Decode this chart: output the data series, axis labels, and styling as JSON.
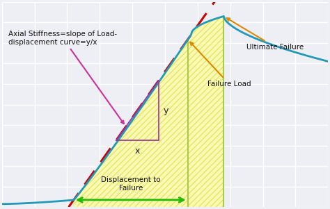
{
  "bg_color": "#eeeef5",
  "grid_color": "#ffffff",
  "curve_color": "#2299bb",
  "dashed_line_color": "#cc0000",
  "hatch_facecolor": "#ffff99",
  "hatch_edgecolor": "#dddd44",
  "vline_color": "#aacc44",
  "arrow_color_orange": "#dd8800",
  "arrow_color_green": "#22bb00",
  "arrow_color_pink": "#cc3399",
  "text_color": "#111111",
  "annotation_axial": "Axial Stiffness=slope of Load-\ndisplacement curve=y/x",
  "annotation_ultimate": "Ultimate Failure",
  "annotation_failure_load": "Failure Load",
  "annotation_disp_failure": "Displacement to\nFailure",
  "label_y": "y",
  "label_x": "x",
  "xlim": [
    0,
    10
  ],
  "ylim": [
    0,
    10
  ]
}
